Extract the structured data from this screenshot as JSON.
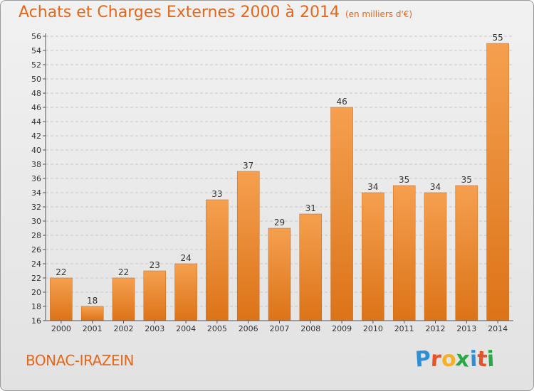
{
  "chart_data": {
    "type": "bar",
    "title": "Achats et Charges Externes 2000 à 2014",
    "subtitle": "(en milliers d'€)",
    "categories": [
      "2000",
      "2001",
      "2002",
      "2003",
      "2004",
      "2005",
      "2006",
      "2007",
      "2008",
      "2009",
      "2010",
      "2011",
      "2012",
      "2013",
      "2014"
    ],
    "values": [
      22,
      18,
      22,
      23,
      24,
      33,
      37,
      29,
      31,
      46,
      34,
      35,
      34,
      35,
      55
    ],
    "ylim": [
      16,
      56
    ],
    "ytick_step": 2,
    "grid": true,
    "legend": "none",
    "colors": {
      "bar_top": "#f5a04f",
      "bar_bottom": "#dc7318",
      "bar_edge": "#c96412"
    }
  },
  "footer": {
    "commune": "BONAC-IRAZEIN",
    "logo_letters": [
      "P",
      "r",
      "o",
      "x",
      "i",
      "t",
      "i"
    ],
    "logo_colors": [
      "#2f8fd6",
      "#e7522b",
      "#f3b126",
      "#2aa845",
      "#2f8fd6",
      "#e7522b",
      "#2aa845"
    ]
  }
}
